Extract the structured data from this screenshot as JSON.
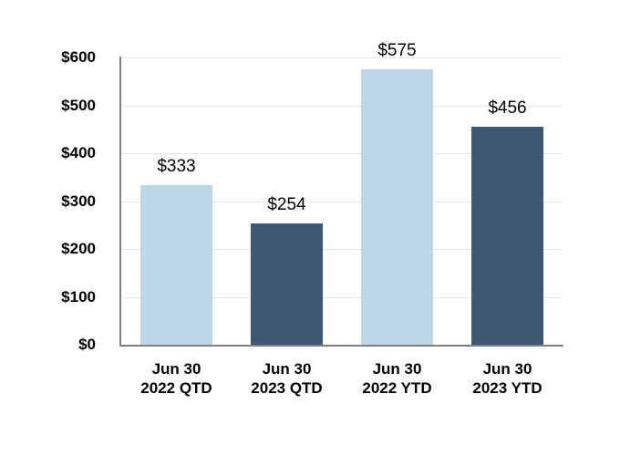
{
  "chart_data": {
    "type": "bar",
    "title": "",
    "xlabel": "",
    "ylabel": "",
    "categories": [
      [
        "Jun 30",
        "2022 QTD"
      ],
      [
        "Jun 30",
        "2023 QTD"
      ],
      [
        "Jun 30",
        "2022 YTD"
      ],
      [
        "Jun 30",
        "2023 YTD"
      ]
    ],
    "values": [
      333,
      254,
      575,
      456
    ],
    "data_labels": [
      "$333",
      "$254",
      "$575",
      "$456"
    ],
    "bar_colors": [
      "#BDD6E8",
      "#3C5872",
      "#BDD6E8",
      "#3C5872"
    ],
    "y_ticks": [
      {
        "label": "$0",
        "value": 0
      },
      {
        "label": "$100",
        "value": 100
      },
      {
        "label": "$200",
        "value": 200
      },
      {
        "label": "$300",
        "value": 300
      },
      {
        "label": "$400",
        "value": 400
      },
      {
        "label": "$500",
        "value": 500
      },
      {
        "label": "$600",
        "value": 600
      }
    ],
    "ylim": [
      0,
      600
    ],
    "grid": true,
    "legend": "none",
    "colors": {
      "light_blue": "#BDD6E8",
      "dark_blue": "#3C5872",
      "gridline": "#E6E6E6",
      "axis": "#808080",
      "text": "#000000",
      "background": "#FFFFFF"
    }
  }
}
